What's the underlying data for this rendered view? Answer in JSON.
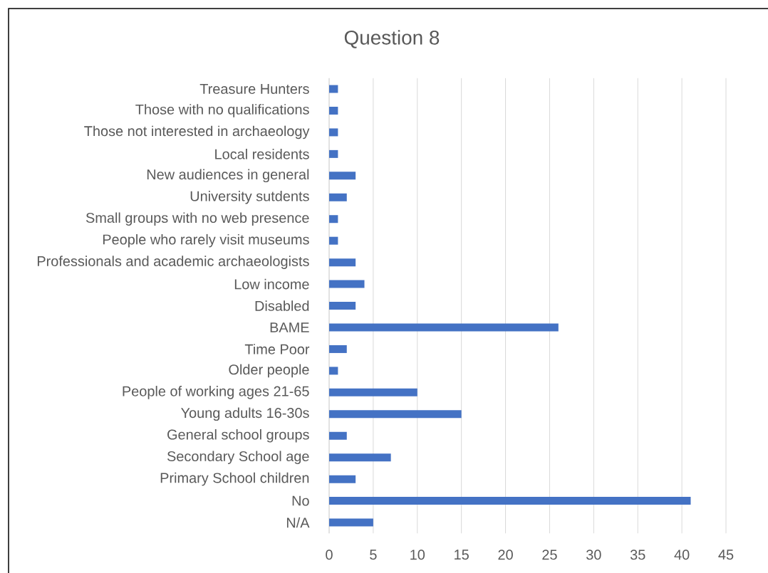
{
  "chart_data": {
    "type": "bar",
    "orientation": "horizontal",
    "title": "Question 8",
    "categories": [
      "Treasure Hunters",
      "Those with no qualifications",
      "Those not interested in archaeology",
      "Local residents",
      "New audiences in general",
      "University sutdents",
      "Small groups with no web presence",
      "People who rarely visit museums",
      "Professionals and academic archaeologists",
      "Low income",
      "Disabled",
      "BAME",
      "Time Poor",
      "Older people",
      "People of working ages 21-65",
      "Young adults 16-30s",
      "General school groups",
      "Secondary School age",
      "Primary School children",
      "No",
      "N/A"
    ],
    "values": [
      1,
      1,
      1,
      1,
      3,
      2,
      1,
      1,
      3,
      4,
      3,
      26,
      2,
      1,
      10,
      15,
      2,
      7,
      3,
      41,
      5
    ],
    "color": "#4472c4",
    "xlim": [
      0,
      45
    ],
    "xticks": [
      0,
      5,
      10,
      15,
      20,
      25,
      30,
      35,
      40,
      45
    ],
    "grid": "x"
  }
}
